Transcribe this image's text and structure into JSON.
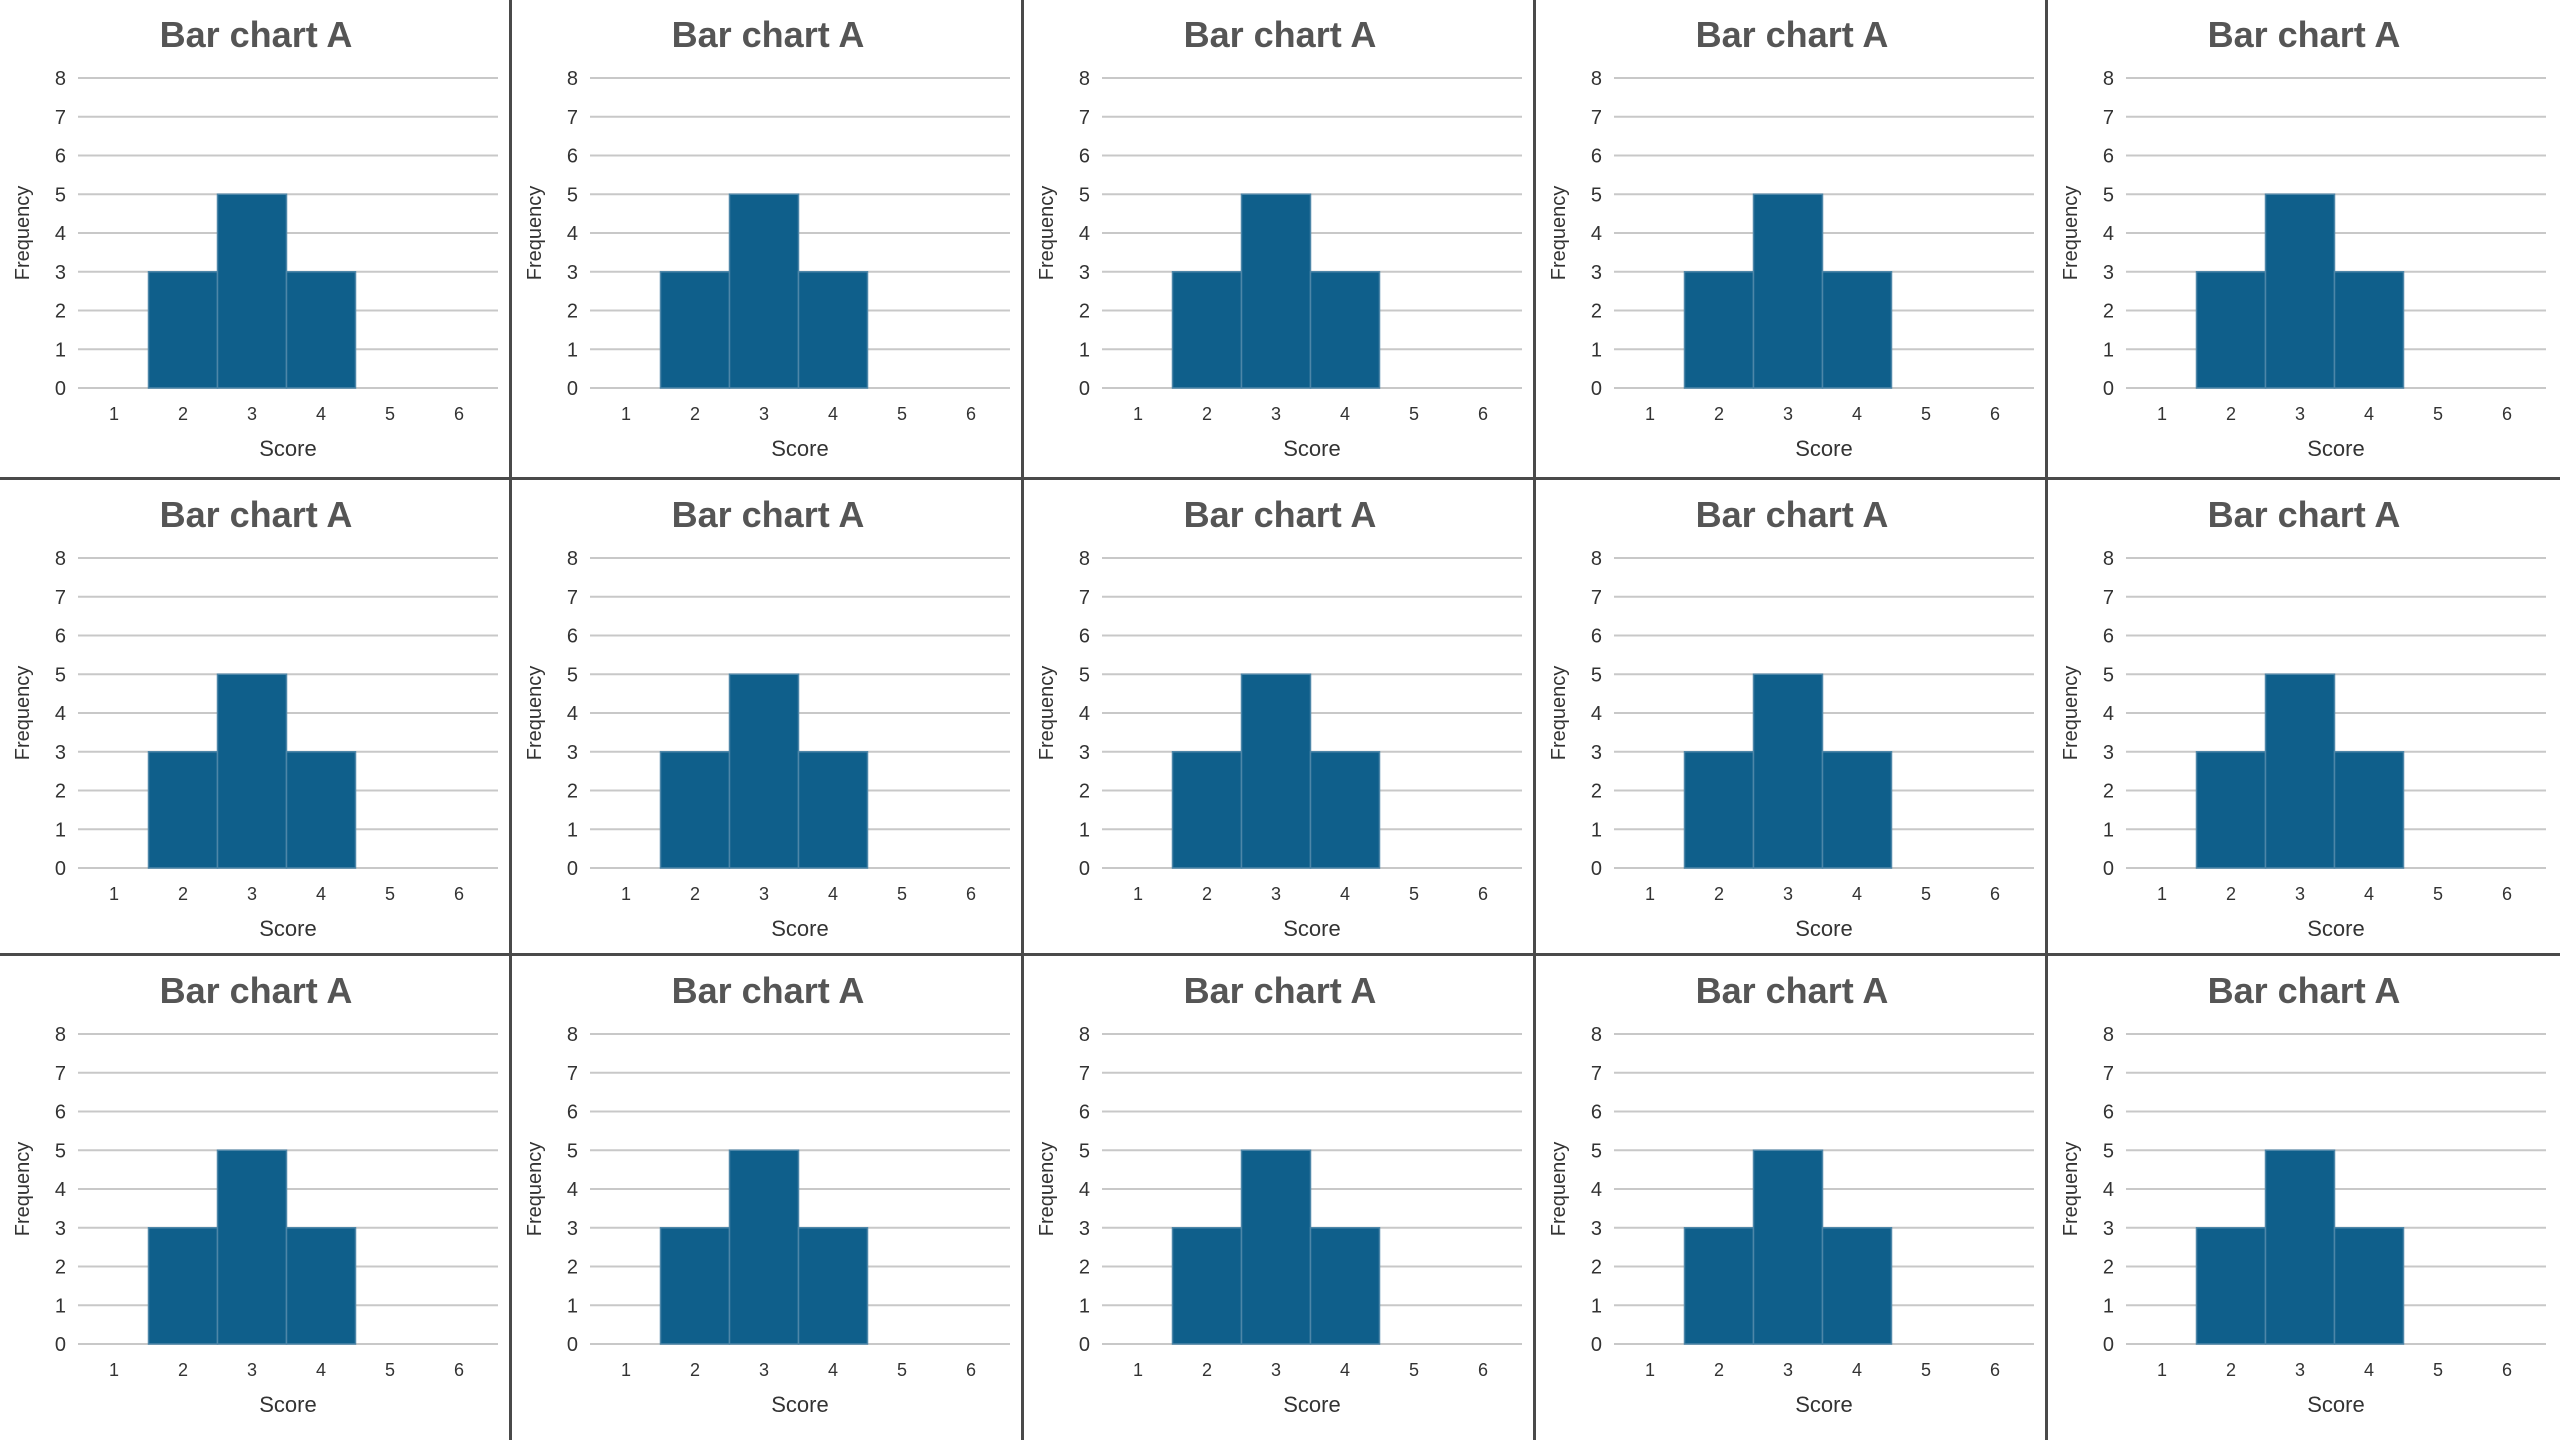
{
  "chart_data": [
    {
      "type": "bar",
      "title": "Bar chart A",
      "xlabel": "Score",
      "ylabel": "Frequency",
      "categories": [
        "1",
        "2",
        "3",
        "4",
        "5",
        "6"
      ],
      "values": [
        0,
        3,
        5,
        3,
        0,
        0
      ],
      "ylim": [
        0,
        8
      ],
      "yticks": [
        0,
        1,
        2,
        3,
        4,
        5,
        6,
        7,
        8
      ],
      "grid": true,
      "color": "#0f5f8b"
    },
    {
      "type": "bar",
      "title": "Bar chart A",
      "xlabel": "Score",
      "ylabel": "Frequency",
      "categories": [
        "1",
        "2",
        "3",
        "4",
        "5",
        "6"
      ],
      "values": [
        0,
        3,
        5,
        3,
        0,
        0
      ],
      "ylim": [
        0,
        8
      ],
      "yticks": [
        0,
        1,
        2,
        3,
        4,
        5,
        6,
        7,
        8
      ],
      "grid": true,
      "color": "#0f5f8b"
    },
    {
      "type": "bar",
      "title": "Bar chart A",
      "xlabel": "Score",
      "ylabel": "Frequency",
      "categories": [
        "1",
        "2",
        "3",
        "4",
        "5",
        "6"
      ],
      "values": [
        0,
        3,
        5,
        3,
        0,
        0
      ],
      "ylim": [
        0,
        8
      ],
      "yticks": [
        0,
        1,
        2,
        3,
        4,
        5,
        6,
        7,
        8
      ],
      "grid": true,
      "color": "#0f5f8b"
    },
    {
      "type": "bar",
      "title": "Bar chart A",
      "xlabel": "Score",
      "ylabel": "Frequency",
      "categories": [
        "1",
        "2",
        "3",
        "4",
        "5",
        "6"
      ],
      "values": [
        0,
        3,
        5,
        3,
        0,
        0
      ],
      "ylim": [
        0,
        8
      ],
      "yticks": [
        0,
        1,
        2,
        3,
        4,
        5,
        6,
        7,
        8
      ],
      "grid": true,
      "color": "#0f5f8b"
    },
    {
      "type": "bar",
      "title": "Bar chart A",
      "xlabel": "Score",
      "ylabel": "Frequency",
      "categories": [
        "1",
        "2",
        "3",
        "4",
        "5",
        "6"
      ],
      "values": [
        0,
        3,
        5,
        3,
        0,
        0
      ],
      "ylim": [
        0,
        8
      ],
      "yticks": [
        0,
        1,
        2,
        3,
        4,
        5,
        6,
        7,
        8
      ],
      "grid": true,
      "color": "#0f5f8b"
    },
    {
      "type": "bar",
      "title": "Bar chart A",
      "xlabel": "Score",
      "ylabel": "Frequency",
      "categories": [
        "1",
        "2",
        "3",
        "4",
        "5",
        "6"
      ],
      "values": [
        0,
        3,
        5,
        3,
        0,
        0
      ],
      "ylim": [
        0,
        8
      ],
      "yticks": [
        0,
        1,
        2,
        3,
        4,
        5,
        6,
        7,
        8
      ],
      "grid": true,
      "color": "#0f5f8b"
    },
    {
      "type": "bar",
      "title": "Bar chart A",
      "xlabel": "Score",
      "ylabel": "Frequency",
      "categories": [
        "1",
        "2",
        "3",
        "4",
        "5",
        "6"
      ],
      "values": [
        0,
        3,
        5,
        3,
        0,
        0
      ],
      "ylim": [
        0,
        8
      ],
      "yticks": [
        0,
        1,
        2,
        3,
        4,
        5,
        6,
        7,
        8
      ],
      "grid": true,
      "color": "#0f5f8b"
    },
    {
      "type": "bar",
      "title": "Bar chart A",
      "xlabel": "Score",
      "ylabel": "Frequency",
      "categories": [
        "1",
        "2",
        "3",
        "4",
        "5",
        "6"
      ],
      "values": [
        0,
        3,
        5,
        3,
        0,
        0
      ],
      "ylim": [
        0,
        8
      ],
      "yticks": [
        0,
        1,
        2,
        3,
        4,
        5,
        6,
        7,
        8
      ],
      "grid": true,
      "color": "#0f5f8b"
    },
    {
      "type": "bar",
      "title": "Bar chart A",
      "xlabel": "Score",
      "ylabel": "Frequency",
      "categories": [
        "1",
        "2",
        "3",
        "4",
        "5",
        "6"
      ],
      "values": [
        0,
        3,
        5,
        3,
        0,
        0
      ],
      "ylim": [
        0,
        8
      ],
      "yticks": [
        0,
        1,
        2,
        3,
        4,
        5,
        6,
        7,
        8
      ],
      "grid": true,
      "color": "#0f5f8b"
    },
    {
      "type": "bar",
      "title": "Bar chart A",
      "xlabel": "Score",
      "ylabel": "Frequency",
      "categories": [
        "1",
        "2",
        "3",
        "4",
        "5",
        "6"
      ],
      "values": [
        0,
        3,
        5,
        3,
        0,
        0
      ],
      "ylim": [
        0,
        8
      ],
      "yticks": [
        0,
        1,
        2,
        3,
        4,
        5,
        6,
        7,
        8
      ],
      "grid": true,
      "color": "#0f5f8b"
    },
    {
      "type": "bar",
      "title": "Bar chart A",
      "xlabel": "Score",
      "ylabel": "Frequency",
      "categories": [
        "1",
        "2",
        "3",
        "4",
        "5",
        "6"
      ],
      "values": [
        0,
        3,
        5,
        3,
        0,
        0
      ],
      "ylim": [
        0,
        8
      ],
      "yticks": [
        0,
        1,
        2,
        3,
        4,
        5,
        6,
        7,
        8
      ],
      "grid": true,
      "color": "#0f5f8b"
    },
    {
      "type": "bar",
      "title": "Bar chart A",
      "xlabel": "Score",
      "ylabel": "Frequency",
      "categories": [
        "1",
        "2",
        "3",
        "4",
        "5",
        "6"
      ],
      "values": [
        0,
        3,
        5,
        3,
        0,
        0
      ],
      "ylim": [
        0,
        8
      ],
      "yticks": [
        0,
        1,
        2,
        3,
        4,
        5,
        6,
        7,
        8
      ],
      "grid": true,
      "color": "#0f5f8b"
    },
    {
      "type": "bar",
      "title": "Bar chart A",
      "xlabel": "Score",
      "ylabel": "Frequency",
      "categories": [
        "1",
        "2",
        "3",
        "4",
        "5",
        "6"
      ],
      "values": [
        0,
        3,
        5,
        3,
        0,
        0
      ],
      "ylim": [
        0,
        8
      ],
      "yticks": [
        0,
        1,
        2,
        3,
        4,
        5,
        6,
        7,
        8
      ],
      "grid": true,
      "color": "#0f5f8b"
    },
    {
      "type": "bar",
      "title": "Bar chart A",
      "xlabel": "Score",
      "ylabel": "Frequency",
      "categories": [
        "1",
        "2",
        "3",
        "4",
        "5",
        "6"
      ],
      "values": [
        0,
        3,
        5,
        3,
        0,
        0
      ],
      "ylim": [
        0,
        8
      ],
      "yticks": [
        0,
        1,
        2,
        3,
        4,
        5,
        6,
        7,
        8
      ],
      "grid": true,
      "color": "#0f5f8b"
    },
    {
      "type": "bar",
      "title": "Bar chart A",
      "xlabel": "Score",
      "ylabel": "Frequency",
      "categories": [
        "1",
        "2",
        "3",
        "4",
        "5",
        "6"
      ],
      "values": [
        0,
        3,
        5,
        3,
        0,
        0
      ],
      "ylim": [
        0,
        8
      ],
      "yticks": [
        0,
        1,
        2,
        3,
        4,
        5,
        6,
        7,
        8
      ],
      "grid": true,
      "color": "#0f5f8b"
    }
  ]
}
